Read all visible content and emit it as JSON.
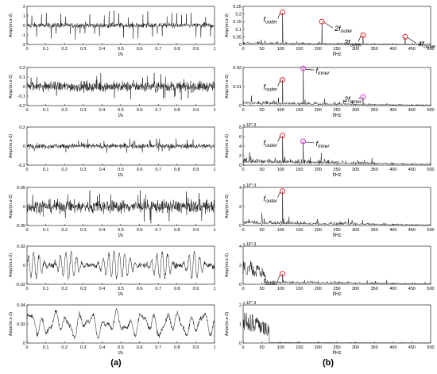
{
  "figure_labels": {
    "left": "(a)",
    "right": "(b)"
  },
  "chart_data": [
    {
      "type": "line",
      "panel": "a1",
      "xlabel": "t/s",
      "ylabel": "Amp/(m.s-2)",
      "xlim": [
        0,
        1
      ],
      "ylim": [
        -2,
        2
      ],
      "xticks": [
        "0",
        "0.1",
        "0.2",
        "0.3",
        "0.4",
        "0.5",
        "0.6",
        "0.7",
        "0.8",
        "0.9",
        "1"
      ],
      "yticks": [
        "-2",
        "-1",
        "0",
        "1",
        "2"
      ],
      "signal": {
        "kind": "impulsive",
        "amplitude": 0.6,
        "spike": 1.6
      }
    },
    {
      "type": "line",
      "panel": "a2",
      "xlabel": "t/s",
      "ylabel": "Amp/(m.s-2)",
      "xlim": [
        0,
        1
      ],
      "ylim": [
        -0.2,
        0.2
      ],
      "xticks": [
        "0",
        "0.1",
        "0.2",
        "0.3",
        "0.4",
        "0.5",
        "0.6",
        "0.7",
        "0.8",
        "0.9",
        "1"
      ],
      "yticks": [
        "-0.2",
        "-0.1",
        "0",
        "0.1",
        "0.2"
      ],
      "signal": {
        "kind": "noise",
        "amplitude": 0.09,
        "spike": 0.15
      }
    },
    {
      "type": "line",
      "panel": "a3",
      "xlabel": "t/s",
      "ylabel": "Amp/(m.s-2)",
      "xlim": [
        0,
        1
      ],
      "ylim": [
        -0.2,
        0.2
      ],
      "xticks": [
        "0",
        "0.1",
        "0.2",
        "0.3",
        "0.4",
        "0.5",
        "0.6",
        "0.7",
        "0.8",
        "0.9",
        "1"
      ],
      "yticks": [
        "-0.2",
        "0",
        "0.2"
      ],
      "signal": {
        "kind": "noise",
        "amplitude": 0.045,
        "spike": 0.08
      }
    },
    {
      "type": "line",
      "panel": "a4",
      "xlabel": "t/s",
      "ylabel": "Amp/(m.s-2)",
      "xlim": [
        0,
        1
      ],
      "ylim": [
        -0.05,
        0.05
      ],
      "xticks": [
        "0",
        "0.1",
        "0.2",
        "0.3",
        "0.4",
        "0.5",
        "0.6",
        "0.7",
        "0.8",
        "0.9",
        "1"
      ],
      "yticks": [
        "-0.05",
        "0",
        "0.05"
      ],
      "signal": {
        "kind": "noise",
        "amplitude": 0.028,
        "spike": 0.045
      }
    },
    {
      "type": "line",
      "panel": "a5",
      "xlabel": "t/s",
      "ylabel": "Amp/(m.s-2)",
      "xlim": [
        0,
        1
      ],
      "ylim": [
        -0.02,
        0.02
      ],
      "xticks": [
        "0",
        "0.1",
        "0.2",
        "0.3",
        "0.4",
        "0.5",
        "0.6",
        "0.7",
        "0.8",
        "0.9",
        "1"
      ],
      "yticks": [
        "-0.02",
        "0",
        "0.02"
      ],
      "signal": {
        "kind": "modulated",
        "amplitude": 0.014,
        "spike": 0.02
      }
    },
    {
      "type": "line",
      "panel": "a6",
      "xlabel": "t/s",
      "ylabel": "Amp/(m.s-2)",
      "xlim": [
        0,
        1
      ],
      "ylim": [
        0,
        0.04
      ],
      "xticks": [
        "0",
        "0.1",
        "0.2",
        "0.3",
        "0.4",
        "0.5",
        "0.6",
        "0.7",
        "0.8",
        "0.9",
        "1"
      ],
      "yticks": [
        "0",
        "0.02",
        "0.04"
      ],
      "signal": {
        "kind": "lowfreq",
        "amplitude": 0.01,
        "base": 0.02
      }
    },
    {
      "type": "line",
      "panel": "b1",
      "xlabel": "f/Hz",
      "ylabel": "Amp/(m.s-2)",
      "xlim": [
        0,
        500
      ],
      "ylim": [
        0,
        0.25
      ],
      "xticks": [
        "0",
        "50",
        "100",
        "150",
        "200",
        "250",
        "300",
        "350",
        "400",
        "450",
        "500"
      ],
      "yticks": [
        "0",
        "0.05",
        "0.1",
        "0.15",
        "0.2",
        "0.25"
      ],
      "peaks": [
        {
          "f": 105,
          "amp": 0.21,
          "marker": "red",
          "label": "f",
          "sub": "outer"
        },
        {
          "f": 210,
          "amp": 0.15,
          "marker": "red",
          "label": "2f",
          "sub": "outer"
        },
        {
          "f": 320,
          "amp": 0.06,
          "marker": "red",
          "label": "3f",
          "sub": "outer"
        },
        {
          "f": 432,
          "amp": 0.05,
          "marker": "red",
          "label": "4f",
          "sub": "outer"
        }
      ],
      "floor": 0.015
    },
    {
      "type": "line",
      "panel": "b2",
      "xlabel": "f/Hz",
      "ylabel": "Amp/(m.s-2)",
      "xlim": [
        0,
        500
      ],
      "ylim": [
        0,
        0.02
      ],
      "xticks": [
        "0",
        "50",
        "100",
        "150",
        "200",
        "250",
        "300",
        "350",
        "400",
        "450",
        "500"
      ],
      "yticks": [
        "0",
        "0.01",
        "0.02"
      ],
      "peaks": [
        {
          "f": 105,
          "amp": 0.0135,
          "marker": "red",
          "label": "f",
          "sub": "outer"
        },
        {
          "f": 160,
          "amp": 0.0195,
          "marker": "magenta",
          "label": "f",
          "sub": "inner"
        },
        {
          "f": 320,
          "amp": 0.0045,
          "marker": "magenta",
          "label": "2f",
          "sub": "inner"
        }
      ],
      "floor": 0.0025
    },
    {
      "type": "line",
      "panel": "b3",
      "xlabel": "f/Hz",
      "ylabel": "Amp/(m.s-2)",
      "xlim": [
        0,
        500
      ],
      "ylim": [
        0,
        8
      ],
      "exponent": "x 10^-3",
      "xticks": [
        "0",
        "50",
        "100",
        "150",
        "200",
        "250",
        "300",
        "350",
        "400",
        "450",
        "500"
      ],
      "yticks": [
        "0",
        "2",
        "4",
        "6",
        "8"
      ],
      "peaks": [
        {
          "f": 105,
          "amp": 6.2,
          "marker": "red",
          "label": "f",
          "sub": "outer"
        },
        {
          "f": 160,
          "amp": 5.0,
          "marker": "magenta",
          "label": "f",
          "sub": "inner"
        }
      ],
      "floor": 1.6
    },
    {
      "type": "line",
      "panel": "b4",
      "xlabel": "f/Hz",
      "ylabel": "Amp/(m.s-2)",
      "xlim": [
        0,
        500
      ],
      "ylim": [
        0,
        4
      ],
      "exponent": "x 10^-3",
      "xticks": [
        "0",
        "50",
        "100",
        "150",
        "200",
        "250",
        "300",
        "350",
        "400",
        "450",
        "500"
      ],
      "yticks": [
        "0",
        "2",
        "4"
      ],
      "peaks": [
        {
          "f": 105,
          "amp": 3.6,
          "marker": "red",
          "label": "f",
          "sub": "outer"
        }
      ],
      "floor": 0.6
    },
    {
      "type": "line",
      "panel": "b5",
      "xlabel": "f/Hz",
      "ylabel": "Amp/(m.s-2)",
      "xlim": [
        0,
        500
      ],
      "ylim": [
        0,
        4
      ],
      "exponent": "x 10^-3",
      "xticks": [
        "0",
        "50",
        "100",
        "150",
        "200",
        "250",
        "300",
        "350",
        "400",
        "450",
        "500"
      ],
      "yticks": [
        "0",
        "2",
        "4"
      ],
      "peaks": [
        {
          "f": 105,
          "amp": 1.1,
          "marker": "red",
          "label": "f",
          "sub": "outer"
        }
      ],
      "floor": 0.5,
      "lowband": {
        "fmax": 60,
        "amp": 3.0
      }
    },
    {
      "type": "line",
      "panel": "b6",
      "xlabel": "f/Hz",
      "ylabel": "Amp/(m.s-2)",
      "xlim": [
        0,
        500
      ],
      "ylim": [
        0,
        2
      ],
      "exponent": "x 10^-3",
      "xticks": [
        "0",
        "50",
        "100",
        "150",
        "200",
        "250",
        "300",
        "350",
        "400",
        "450",
        "500"
      ],
      "yticks": [
        "0",
        "1",
        "2"
      ],
      "peaks": [],
      "floor": 0.05,
      "lowband": {
        "fmax": 70,
        "amp": 1.9
      }
    }
  ]
}
